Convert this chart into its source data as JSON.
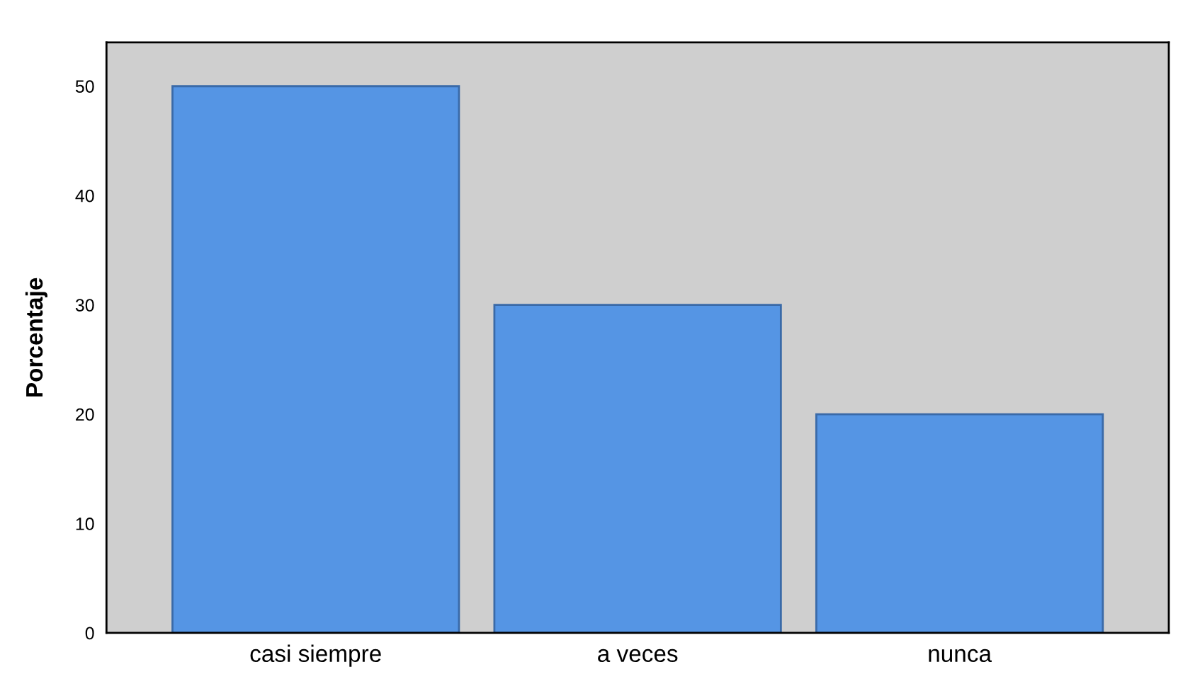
{
  "chart_data": {
    "type": "bar",
    "ylabel": "Porcentaje",
    "categories": [
      "casi siempre",
      "a veces",
      "nunca"
    ],
    "values": [
      50,
      30,
      20
    ],
    "color": "#5595e4",
    "ylim": [
      0,
      54
    ],
    "yticks": [
      0,
      10,
      20,
      30,
      40,
      50
    ]
  }
}
